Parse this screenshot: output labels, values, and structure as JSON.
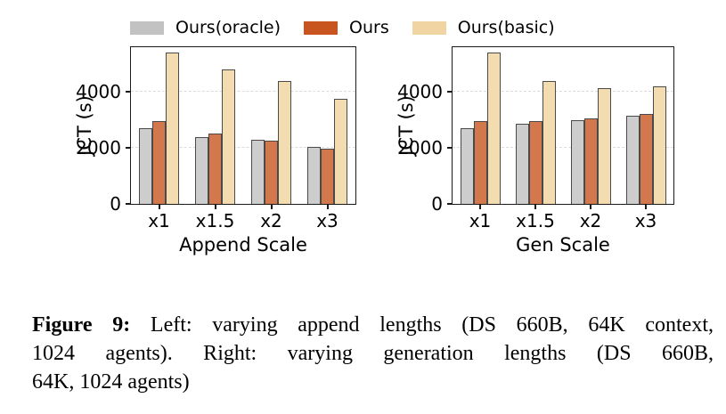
{
  "legend": {
    "position": "top horizontal row, above both plots",
    "entries": [
      {
        "label": "Ours(oracle)",
        "color": "#c2c2c2"
      },
      {
        "label": "Ours",
        "color": "#c8551f"
      },
      {
        "label": "Ours(basic)",
        "color": "#f0d5a2"
      }
    ]
  },
  "chart_data": [
    {
      "type": "bar",
      "title": "",
      "xlabel": "Append Scale",
      "ylabel": "JCT (s)",
      "categories": [
        "x1",
        "x1.5",
        "x2",
        "x3"
      ],
      "ylim": [
        0,
        5600
      ],
      "yticks": [
        0,
        2000,
        4000
      ],
      "grid": "horizontal dashed lines at 2000 and 4000",
      "legend_position": "shared legend at top",
      "series": [
        {
          "name": "Ours(oracle)",
          "color": "#cdcdcd",
          "values": [
            2700,
            2400,
            2280,
            2050
          ]
        },
        {
          "name": "Ours",
          "color": "#d3774c",
          "values": [
            2950,
            2500,
            2250,
            1980
          ]
        },
        {
          "name": "Ours(basic)",
          "color": "#f3ddb0",
          "values": [
            5400,
            4800,
            4400,
            3750
          ]
        }
      ]
    },
    {
      "type": "bar",
      "title": "",
      "xlabel": "Gen Scale",
      "ylabel": "JCT (s)",
      "categories": [
        "x1",
        "x1.5",
        "x2",
        "x3"
      ],
      "ylim": [
        0,
        5600
      ],
      "yticks": [
        0,
        2000,
        4000
      ],
      "grid": "horizontal dashed lines at 2000 and 4000",
      "legend_position": "shared legend at top",
      "series": [
        {
          "name": "Ours(oracle)",
          "color": "#cdcdcd",
          "values": [
            2700,
            2850,
            3000,
            3150
          ]
        },
        {
          "name": "Ours",
          "color": "#d3774c",
          "values": [
            2950,
            2950,
            3050,
            3200
          ]
        },
        {
          "name": "Ours(basic)",
          "color": "#f3ddb0",
          "values": [
            5400,
            4400,
            4150,
            4200
          ]
        }
      ]
    }
  ],
  "colors": {
    "background": "#ffffff",
    "axis": "#1a1a1a",
    "bar_edge": "#4a4a4a",
    "gridline": "#dcdcdc",
    "caption_text": "#000000"
  },
  "caption": {
    "bold_prefix": "Figure 9:",
    "line1_rest": " Left: varying append lengths (DS 660B, 64K context,",
    "line2": "1024 agents). Right: varying generation lengths (DS 660B,",
    "line3": "64K, 1024 agents)"
  }
}
